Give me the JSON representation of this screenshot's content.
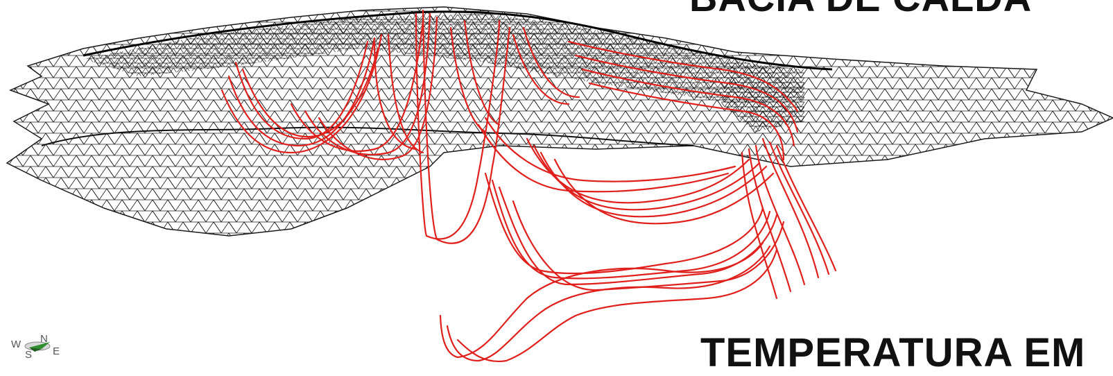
{
  "titles": {
    "top_partial": "BACIA DE CALDA",
    "bottom_partial": "TEMPERATURA EM"
  },
  "compass": {
    "west": "W",
    "south": "S",
    "north": "N",
    "east": "E"
  },
  "colors": {
    "mesh": "#1a1a1a",
    "flowlines": "#e0201c",
    "background": "#ffffff"
  },
  "icons": [
    "compass-rose-icon"
  ]
}
